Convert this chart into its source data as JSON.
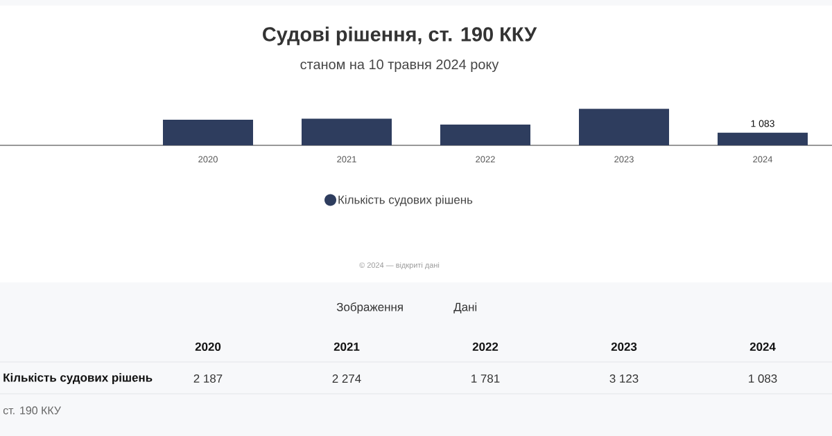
{
  "chart_data": {
    "type": "bar",
    "title": "Судові рішення, ст. 190 ККУ",
    "subtitle": "станом на 10 травня 2024 року",
    "categories": [
      "2020",
      "2021",
      "2022",
      "2023",
      "2024"
    ],
    "series": [
      {
        "name": "Кількість судових рішень",
        "color": "#2e3d5e",
        "values": [
          2187,
          2274,
          1781,
          3123,
          1083
        ],
        "value_labels": [
          "2 187",
          "2 274",
          "1 781",
          "3 123",
          "1 083"
        ]
      }
    ],
    "tick_labels": "x",
    "legend": "bottom",
    "annotations": [
      {
        "text": "1 083",
        "x": "2024",
        "y": 1083
      },
      "© 2024 — відкриті дані",
      "Зображення",
      "Дані",
      "ст. 190 ККУ"
    ]
  }
}
